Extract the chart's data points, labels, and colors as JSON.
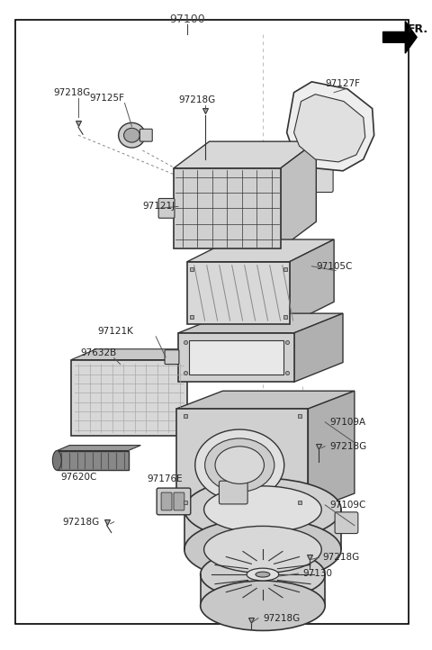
{
  "bg_color": "#ffffff",
  "line_color": "#000000",
  "part_stroke": "#333333",
  "label_color": "#222222",
  "title_label": "97100",
  "fr_label": "FR.",
  "figsize": [
    4.8,
    7.22
  ],
  "dpi": 100,
  "border": [
    0.035,
    0.025,
    0.955,
    0.965
  ],
  "guide_color": "#888888",
  "screw_color": "#666666",
  "part_fill": "#e8e8e8",
  "dark_fill": "#aaaaaa",
  "mid_fill": "#cccccc",
  "light_fill": "#f2f2f2"
}
